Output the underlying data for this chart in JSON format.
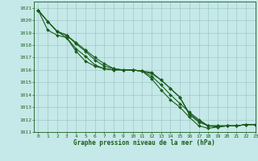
{
  "title": "Graphe pression niveau de la mer (hPa)",
  "xlim": [
    -0.5,
    23
  ],
  "ylim": [
    1011,
    1021.5
  ],
  "yticks": [
    1011,
    1012,
    1013,
    1014,
    1015,
    1016,
    1017,
    1018,
    1019,
    1020,
    1021
  ],
  "xticks": [
    0,
    1,
    2,
    3,
    4,
    5,
    6,
    7,
    8,
    9,
    10,
    11,
    12,
    13,
    14,
    15,
    16,
    17,
    18,
    19,
    20,
    21,
    22,
    23
  ],
  "bg_color": "#c5e8e8",
  "grid_color": "#a0c8c8",
  "line_color": "#1a5c1a",
  "tick_color": "#1a5c1a",
  "series": [
    [
      1020.8,
      1019.9,
      1019.1,
      1018.8,
      1018.2,
      1017.6,
      1017.0,
      1016.5,
      1016.1,
      1016.0,
      1016.0,
      1015.9,
      1015.8,
      1015.2,
      1014.5,
      1013.8,
      1012.4,
      1011.8,
      1011.5,
      1011.5,
      1011.5,
      1011.5,
      1011.6,
      1011.6
    ],
    [
      1020.8,
      1019.9,
      1019.1,
      1018.8,
      1018.1,
      1017.5,
      1016.8,
      1016.3,
      1016.1,
      1016.0,
      1016.0,
      1015.9,
      1015.7,
      1015.2,
      1014.5,
      1013.8,
      1012.5,
      1011.9,
      1011.5,
      1011.5,
      1011.5,
      1011.5,
      1011.6,
      1011.6
    ],
    [
      1020.8,
      1019.9,
      1019.1,
      1018.6,
      1017.7,
      1017.1,
      1016.4,
      1016.1,
      1016.0,
      1016.0,
      1016.0,
      1015.9,
      1015.5,
      1014.8,
      1014.0,
      1013.3,
      1012.6,
      1012.0,
      1011.5,
      1011.4,
      1011.5,
      1011.5,
      1011.6,
      1011.6
    ],
    [
      1020.8,
      1019.2,
      1018.8,
      1018.6,
      1017.5,
      1016.7,
      1016.3,
      1016.1,
      1016.0,
      1016.0,
      1016.0,
      1015.9,
      1015.3,
      1014.4,
      1013.6,
      1013.0,
      1012.2,
      1011.5,
      1011.3,
      1011.4,
      1011.5,
      1011.5,
      1011.6,
      1011.6
    ]
  ]
}
